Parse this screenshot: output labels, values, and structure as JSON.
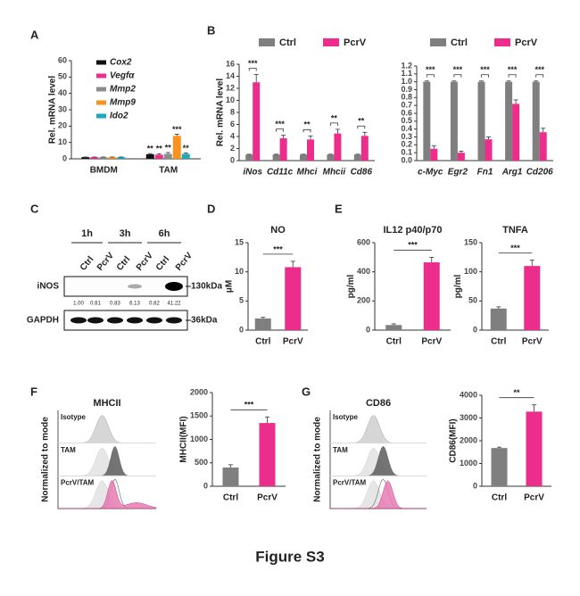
{
  "panels": [
    "A",
    "B",
    "C",
    "D",
    "E",
    "F",
    "G"
  ],
  "chart_data": [
    {
      "type": "bar",
      "ylabel": "Rel. mRNA level",
      "categories": [
        "BMDM",
        "TAM"
      ],
      "ylim": [
        0,
        60
      ],
      "yticks": [
        0,
        10,
        20,
        30,
        40,
        50,
        60
      ],
      "legend": "inside",
      "legend_italic": true,
      "categories_italic": false,
      "series": [
        {
          "name": "Cox2",
          "color": "#111111",
          "values": [
            1,
            2.8
          ],
          "errors": [
            0.1,
            0.4
          ],
          "significance": [
            null,
            "**"
          ]
        },
        {
          "name": "Vegfα",
          "color": "#ec2d8c",
          "values": [
            1,
            2.5
          ],
          "errors": [
            0.1,
            0.6
          ],
          "significance": [
            null,
            "**"
          ]
        },
        {
          "name": "Mmp2",
          "color": "#8c8c8c",
          "values": [
            1,
            3
          ],
          "errors": [
            0.1,
            0.8
          ],
          "significance": [
            null,
            "**"
          ]
        },
        {
          "name": "Mmp9",
          "color": "#f7931e",
          "values": [
            1,
            14
          ],
          "errors": [
            0.1,
            1.0
          ],
          "significance": [
            null,
            "***"
          ]
        },
        {
          "name": "Ido2",
          "color": "#1fa7b5",
          "values": [
            1,
            3
          ],
          "errors": [
            0.1,
            0.6
          ],
          "significance": [
            null,
            "**"
          ]
        }
      ]
    },
    {
      "type": "bar",
      "ylabel": "Rel. mRNA level",
      "categories": [
        "iNos",
        "Cd11c",
        "Mhci",
        "Mhcii",
        "Cd86"
      ],
      "ylim": [
        0,
        16
      ],
      "yticks": [
        0,
        2,
        4,
        6,
        8,
        10,
        12,
        14,
        16
      ],
      "legend": "top",
      "legend_italic": false,
      "categories_italic": true,
      "series": [
        {
          "name": "Ctrl",
          "color": "#7f7f7f",
          "values": [
            1,
            1,
            1,
            1,
            1
          ],
          "errors": [
            0.05,
            0.05,
            0.05,
            0.05,
            0.05
          ]
        },
        {
          "name": "PcrV",
          "color": "#ec2d8c",
          "values": [
            13,
            3.7,
            3.5,
            4.5,
            4.1
          ],
          "errors": [
            1.3,
            0.5,
            0.6,
            0.7,
            0.6
          ]
        }
      ],
      "significance": [
        "***",
        "***",
        "**",
        "**",
        "**"
      ]
    },
    {
      "type": "bar",
      "categories": [
        "c-Myc",
        "Egr2",
        "Fn1",
        "Arg1",
        "Cd206"
      ],
      "ylim": [
        0,
        1.2
      ],
      "yticks": [
        {
          "value": 0,
          "label": "0.0"
        },
        0.1,
        0.2,
        0.3,
        0.4,
        0.5,
        0.6,
        0.7,
        0.8,
        0.9,
        {
          "value": 1,
          "label": "1.0"
        },
        1.1,
        1.2
      ],
      "legend": "top",
      "legend_italic": false,
      "categories_italic": true,
      "series": [
        {
          "name": "Ctrl",
          "color": "#7f7f7f",
          "values": [
            1,
            1,
            1,
            1,
            1
          ],
          "errors": [
            0.01,
            0.01,
            0.01,
            0.01,
            0.01
          ]
        },
        {
          "name": "PcrV",
          "color": "#ec2d8c",
          "values": [
            0.15,
            0.1,
            0.27,
            0.72,
            0.36
          ],
          "errors": [
            0.04,
            0.02,
            0.03,
            0.05,
            0.05
          ]
        }
      ],
      "significance": [
        "***",
        "***",
        "***",
        "***",
        "***"
      ]
    },
    {
      "type": "bar",
      "title": "NO",
      "ylabel": "μM",
      "categories": [
        "Ctrl",
        "PcrV"
      ],
      "values": [
        2,
        10.8
      ],
      "errors": [
        0.2,
        1.0
      ],
      "colors": [
        "#7f7f7f",
        "#ec2d8c"
      ],
      "ylim": [
        0,
        15
      ],
      "yticks": [
        0,
        5,
        10,
        15
      ],
      "significance": "***"
    },
    {
      "type": "bar",
      "title": "IL12 p40/p70",
      "ylabel": "pg/ml",
      "categories": [
        "Ctrl",
        "PcrV"
      ],
      "values": [
        35,
        465
      ],
      "errors": [
        8,
        35
      ],
      "colors": [
        "#7f7f7f",
        "#ec2d8c"
      ],
      "ylim": [
        0,
        600
      ],
      "yticks": [
        0,
        200,
        400,
        600
      ],
      "significance": "***"
    },
    {
      "type": "bar",
      "title": "TNFA",
      "ylabel": "pg/ml",
      "categories": [
        "Ctrl",
        "PcrV"
      ],
      "values": [
        37,
        110
      ],
      "errors": [
        3,
        10
      ],
      "colors": [
        "#7f7f7f",
        "#ec2d8c"
      ],
      "ylim": [
        0,
        150
      ],
      "yticks": [
        0,
        50,
        100,
        150
      ],
      "significance": "***"
    },
    {
      "type": "bar",
      "ylabel": "MHCII(MFI)",
      "categories": [
        "Ctrl",
        "PcrV"
      ],
      "values": [
        400,
        1350
      ],
      "errors": [
        60,
        130
      ],
      "colors": [
        "#7f7f7f",
        "#ec2d8c"
      ],
      "ylim": [
        0,
        2000
      ],
      "yticks": [
        0,
        500,
        1000,
        1500,
        2000
      ],
      "significance": "***"
    },
    {
      "type": "bar",
      "ylabel": "CD86(MFI)",
      "categories": [
        "Ctrl",
        "PcrV"
      ],
      "values": [
        1680,
        3280
      ],
      "errors": [
        40,
        300
      ],
      "colors": [
        "#7f7f7f",
        "#ec2d8c"
      ],
      "ylim": [
        0,
        4000
      ],
      "yticks": [
        0,
        1000,
        2000,
        3000,
        4000
      ],
      "significance": "**"
    }
  ],
  "blot": {
    "times": [
      "1h",
      "3h",
      "6h"
    ],
    "lanes": [
      "Ctrl",
      "PcrV",
      "Ctrl",
      "PcrV",
      "Ctrl",
      "PcrV"
    ],
    "rows": [
      {
        "name": "iNOS",
        "size": "130kDa"
      },
      {
        "name": "GAPDH",
        "size": "36kDa"
      }
    ],
    "quant": [
      "1.00",
      "0.81",
      "0.83",
      "6.13",
      "0.82",
      "41.22"
    ]
  },
  "flow": [
    {
      "title": "MHCII",
      "ylabel": "Normalized to mode",
      "rows": [
        "Isotype",
        "TAM",
        "PcrV/TAM"
      ]
    },
    {
      "title": "CD86",
      "ylabel": "Normalized to mode",
      "rows": [
        "Isotype",
        "TAM",
        "PcrV/TAM"
      ]
    }
  ],
  "figure_label": "Figure S3"
}
